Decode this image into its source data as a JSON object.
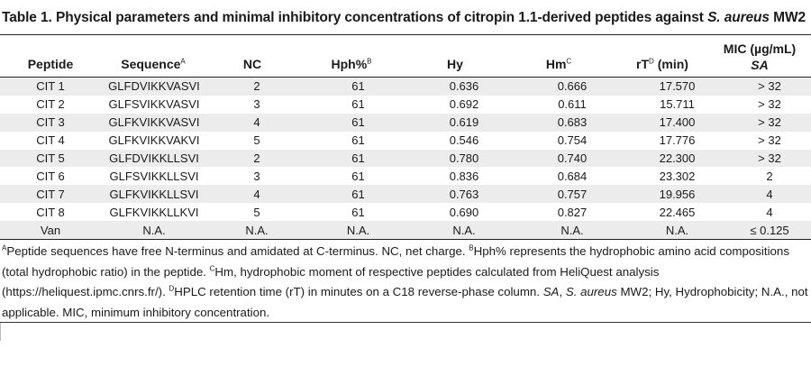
{
  "caption": {
    "prefix": "Table 1. Physical parameters and minimal inhibitory concentrations of citropin 1.1-derived peptides against ",
    "organism": "S. aureus",
    "suffix": " MW2"
  },
  "headers": {
    "peptide": "Peptide",
    "sequence": "Sequence",
    "sequence_mark": "A",
    "nc": "NC",
    "hph": "Hph%",
    "hph_mark": "B",
    "hy": "Hy",
    "hm": "Hm",
    "hm_mark": "C",
    "rt_prefix": "rT",
    "rt_mark": "D",
    "rt_suffix": " (min)",
    "mic": "MIC (µg/mL)",
    "mic_sub": "SA"
  },
  "rows": [
    {
      "peptide": "CIT 1",
      "sequence": "GLFDVIKKVASVI",
      "nc": "2",
      "hph": "61",
      "hy": "0.636",
      "hm": "0.666",
      "rt": "17.570",
      "mic": "> 32"
    },
    {
      "peptide": "CIT 2",
      "sequence": "GLFSVIKKVASVI",
      "nc": "3",
      "hph": "61",
      "hy": "0.692",
      "hm": "0.611",
      "rt": "15.711",
      "mic": "> 32"
    },
    {
      "peptide": "CIT 3",
      "sequence": "GLFKVIKKVASVI",
      "nc": "4",
      "hph": "61",
      "hy": "0.619",
      "hm": "0.683",
      "rt": "17.400",
      "mic": "> 32"
    },
    {
      "peptide": "CIT 4",
      "sequence": "GLFKVIKKVAKVI",
      "nc": "5",
      "hph": "61",
      "hy": "0.546",
      "hm": "0.754",
      "rt": "17.776",
      "mic": "> 32"
    },
    {
      "peptide": "CIT 5",
      "sequence": "GLFDVIKKLLSVI",
      "nc": "2",
      "hph": "61",
      "hy": "0.780",
      "hm": "0.740",
      "rt": "22.300",
      "mic": "> 32"
    },
    {
      "peptide": "CIT 6",
      "sequence": "GLFSVIKKLLSVI",
      "nc": "3",
      "hph": "61",
      "hy": "0.836",
      "hm": "0.684",
      "rt": "23.302",
      "mic": "2"
    },
    {
      "peptide": "CIT 7",
      "sequence": "GLFKVIKKLLSVI",
      "nc": "4",
      "hph": "61",
      "hy": "0.763",
      "hm": "0.757",
      "rt": "19.956",
      "mic": "4"
    },
    {
      "peptide": "CIT 8",
      "sequence": "GLFKVIKKLLKVI",
      "nc": "5",
      "hph": "61",
      "hy": "0.690",
      "hm": "0.827",
      "rt": "22.465",
      "mic": "4"
    },
    {
      "peptide": "Van",
      "sequence": "N.A.",
      "nc": "N.A.",
      "hph": "N.A.",
      "hy": "N.A.",
      "hm": "N.A.",
      "rt": "N.A.",
      "mic": "≤ 0.125"
    }
  ],
  "footnote": {
    "a_mark": "A",
    "a_text": "Peptide sequences have free N-terminus and amidated at C-terminus. NC, net charge. ",
    "b_mark": "B",
    "b_text": "Hph% represents the hydrophobic amino acid compositions (total hydrophobic ratio) in the peptide. ",
    "c_mark": "C",
    "c_text": "Hm, hydrophobic moment of respective peptides calculated from HeliQuest analysis (https://heliquest.ipmc.cnrs.fr/). ",
    "d_mark": "D",
    "d_text": "HPLC retention time (rT) in minutes on a C18 reverse-phase column. ",
    "sa_abbr": "SA",
    "sa_sep": ", ",
    "sa_org": "S. aureus",
    "tail": " MW2; Hy, Hydrophobicity; N.A., not applicable. MIC, minimum inhibitory concentration."
  }
}
